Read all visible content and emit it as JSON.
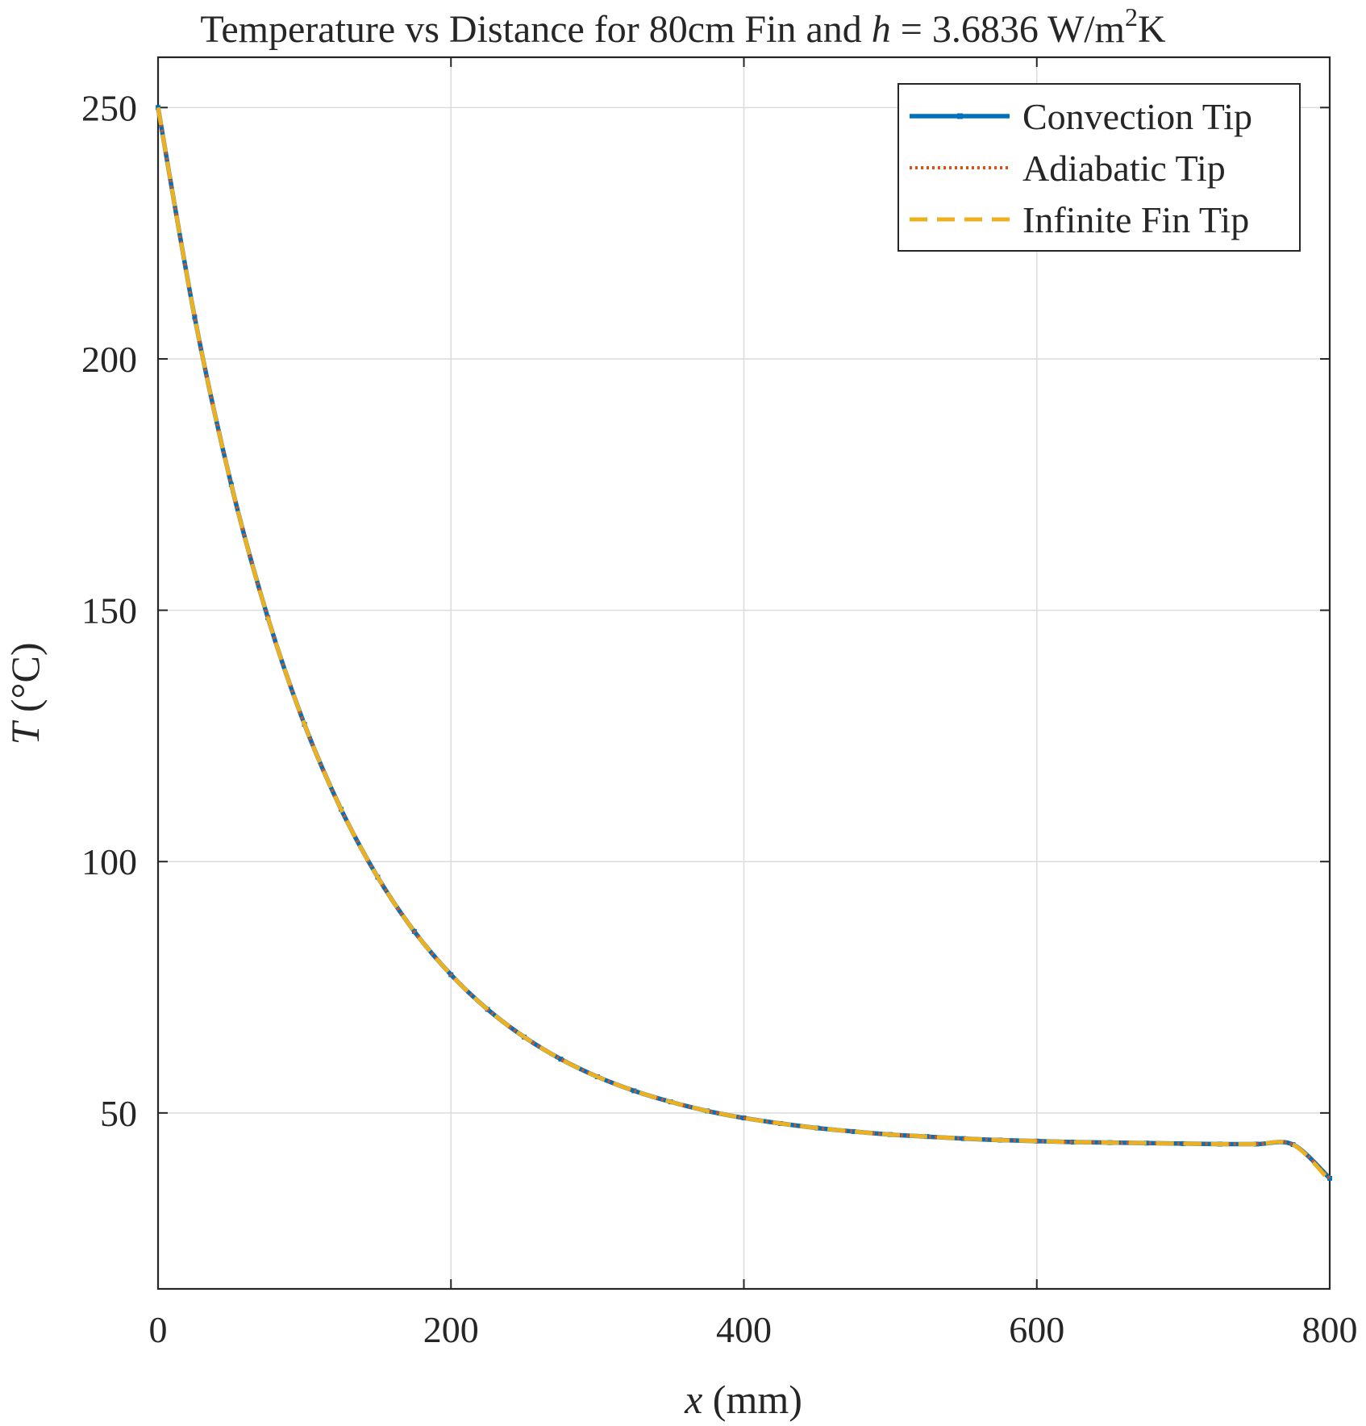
{
  "chart_data": {
    "type": "line",
    "title": {
      "prefix": "Temperature vs Distance for 80cm Fin and ",
      "var": "h",
      "eq": " = 3.6836 W/m",
      "sup": "2",
      "suffix": "K"
    },
    "xlabel": {
      "var": "x",
      "rest": " (mm)"
    },
    "ylabel": {
      "var": "T",
      "rest": " (°C)"
    },
    "xlim": [
      0,
      800
    ],
    "ylim": [
      15,
      260
    ],
    "xticks": [
      0,
      200,
      400,
      600,
      800
    ],
    "yticks": [
      50,
      100,
      150,
      200,
      250
    ],
    "grid": true,
    "legend_position": "top-right",
    "x": [
      0,
      25,
      50,
      75,
      100,
      125,
      150,
      175,
      200,
      225,
      250,
      275,
      300,
      325,
      350,
      375,
      400,
      425,
      450,
      475,
      500,
      525,
      550,
      575,
      600,
      625,
      650,
      675,
      700,
      725,
      750,
      775,
      800
    ],
    "series": [
      {
        "name": "Convection Tip",
        "color": "#0072BD",
        "style": "solid-marker",
        "values": [
          250,
          208.3,
          175.0,
          148.5,
          127.3,
          110.4,
          96.9,
          86.1,
          77.5,
          70.6,
          65.1,
          60.7,
          57.2,
          54.4,
          52.2,
          50.4,
          49.0,
          47.9,
          47.0,
          46.3,
          45.7,
          45.3,
          44.9,
          44.6,
          44.4,
          44.2,
          44.1,
          44.0,
          43.9,
          43.8,
          43.8,
          43.7,
          37.0
        ]
      },
      {
        "name": "Adiabatic Tip",
        "color": "#D95319",
        "style": "dotted",
        "values": [
          250,
          208.3,
          175.0,
          148.5,
          127.3,
          110.4,
          96.9,
          86.1,
          77.5,
          70.6,
          65.1,
          60.7,
          57.2,
          54.4,
          52.2,
          50.4,
          49.0,
          47.9,
          47.0,
          46.3,
          45.7,
          45.3,
          44.9,
          44.6,
          44.4,
          44.2,
          44.1,
          44.0,
          43.9,
          43.8,
          43.8,
          43.7,
          37.0
        ]
      },
      {
        "name": "Infinite Fin Tip",
        "color": "#EDB120",
        "style": "dashed",
        "values": [
          250,
          208.3,
          175.0,
          148.5,
          127.3,
          110.4,
          96.9,
          86.1,
          77.5,
          70.6,
          65.1,
          60.7,
          57.2,
          54.4,
          52.2,
          50.4,
          49.0,
          47.9,
          47.0,
          46.3,
          45.7,
          45.3,
          44.9,
          44.6,
          44.4,
          44.2,
          44.1,
          44.0,
          43.9,
          43.8,
          43.8,
          43.7,
          36.5
        ]
      }
    ]
  }
}
